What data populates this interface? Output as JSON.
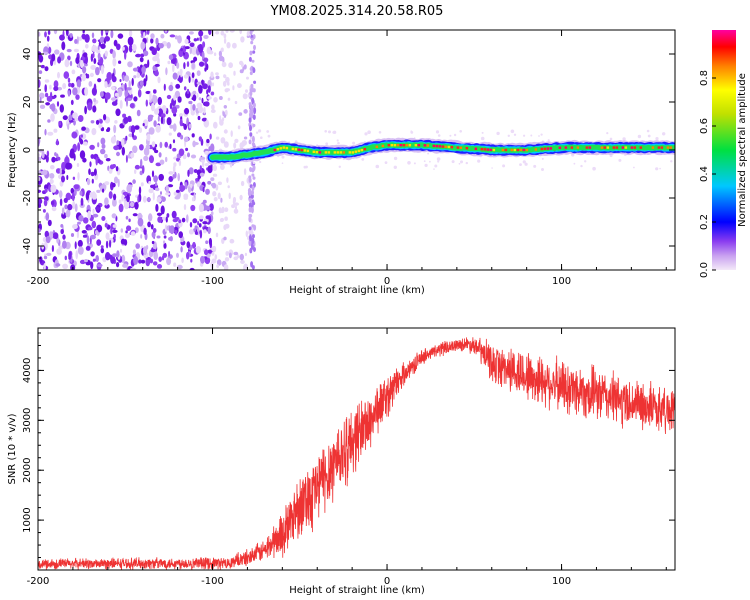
{
  "title": "YM08.2025.314.20.58.R05",
  "chart_data": [
    {
      "type": "heatmap",
      "name": "spectrogram",
      "xlabel": "Height of straight line (km)",
      "ylabel": "Frequency (Hz)",
      "xlim": [
        -200,
        165
      ],
      "ylim": [
        -50,
        50
      ],
      "xticks": [
        -200,
        -100,
        0,
        100
      ],
      "yticks": [
        -40,
        -20,
        0,
        20,
        40
      ],
      "noise_region": [
        -200,
        -100
      ],
      "sparse_noise_region": [
        -100,
        -77
      ],
      "signal_start_km": -100,
      "ridge": [
        {
          "x": -100,
          "f": -3
        },
        {
          "x": -90,
          "f": -3
        },
        {
          "x": -80,
          "f": -2
        },
        {
          "x": -70,
          "f": -1
        },
        {
          "x": -60,
          "f": 1
        },
        {
          "x": -50,
          "f": 0
        },
        {
          "x": -40,
          "f": -1
        },
        {
          "x": -30,
          "f": -1
        },
        {
          "x": -20,
          "f": -1
        },
        {
          "x": -10,
          "f": 1
        },
        {
          "x": 0,
          "f": 2
        },
        {
          "x": 20,
          "f": 2
        },
        {
          "x": 40,
          "f": 1
        },
        {
          "x": 60,
          "f": 0
        },
        {
          "x": 80,
          "f": 0
        },
        {
          "x": 100,
          "f": 1
        },
        {
          "x": 130,
          "f": 1
        },
        {
          "x": 165,
          "f": 1
        }
      ],
      "colorbar": {
        "label": "Normalized spectral amplitude",
        "ticks": [
          "0.0",
          "0.2",
          "0.4",
          "0.6",
          "0.8"
        ],
        "range": [
          0,
          1
        ]
      }
    },
    {
      "type": "line",
      "name": "snr",
      "xlabel": "Height of straight line (km)",
      "ylabel": "SNR (10 * v/v)",
      "xlim": [
        -200,
        165
      ],
      "ylim": [
        0,
        4850
      ],
      "xticks": [
        -200,
        -100,
        0,
        100
      ],
      "yticks": [
        1000,
        2000,
        3000,
        4000
      ],
      "color": "#ee3333",
      "envelope": [
        {
          "x": -200,
          "lo": 0,
          "hi": 250
        },
        {
          "x": -90,
          "lo": 0,
          "hi": 280
        },
        {
          "x": -80,
          "lo": 50,
          "hi": 450
        },
        {
          "x": -70,
          "lo": 150,
          "hi": 650
        },
        {
          "x": -60,
          "lo": 200,
          "hi": 1300
        },
        {
          "x": -50,
          "lo": 600,
          "hi": 2100
        },
        {
          "x": -40,
          "lo": 800,
          "hi": 2500
        },
        {
          "x": -30,
          "lo": 1300,
          "hi": 3100
        },
        {
          "x": -20,
          "lo": 1800,
          "hi": 3400
        },
        {
          "x": -10,
          "lo": 2300,
          "hi": 3700
        },
        {
          "x": 0,
          "lo": 3000,
          "hi": 4000
        },
        {
          "x": 10,
          "lo": 3700,
          "hi": 4200
        },
        {
          "x": 20,
          "lo": 4100,
          "hi": 4450
        },
        {
          "x": 30,
          "lo": 4250,
          "hi": 4600
        },
        {
          "x": 40,
          "lo": 4400,
          "hi": 4650
        },
        {
          "x": 50,
          "lo": 4300,
          "hi": 4750
        },
        {
          "x": 60,
          "lo": 3700,
          "hi": 4600
        },
        {
          "x": 80,
          "lo": 3300,
          "hi": 4500
        },
        {
          "x": 100,
          "lo": 3100,
          "hi": 4300
        },
        {
          "x": 120,
          "lo": 2900,
          "hi": 4150
        },
        {
          "x": 140,
          "lo": 2800,
          "hi": 3900
        },
        {
          "x": 165,
          "lo": 2700,
          "hi": 3700
        }
      ]
    }
  ]
}
